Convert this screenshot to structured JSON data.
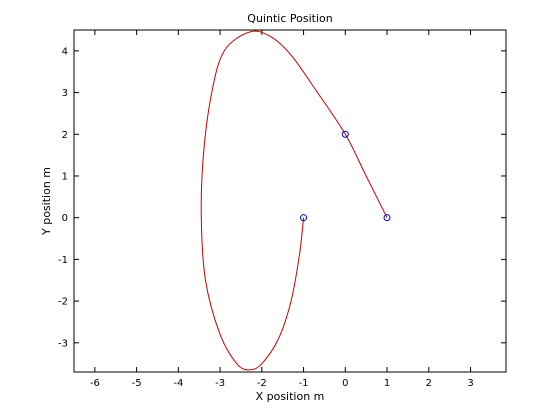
{
  "chart_data": {
    "type": "line",
    "title": "Quintic Position",
    "xlabel": "X position m",
    "ylabel": "Y position m",
    "xlim": [
      -6.5,
      3.85
    ],
    "ylim": [
      -3.7,
      4.5
    ],
    "xticks": [
      -6,
      -5,
      -4,
      -3,
      -2,
      -1,
      0,
      1,
      2,
      3
    ],
    "yticks": [
      -3,
      -2,
      -1,
      0,
      1,
      2,
      3,
      4
    ],
    "grid": false,
    "series": [
      {
        "color": "#cc0000",
        "style": "line",
        "x": [
          1,
          0.5,
          0,
          -0.7,
          -1.3,
          -1.8,
          -2.3,
          -2.9,
          -3.2,
          -3.4,
          -3.45,
          -3.35,
          -3.0,
          -2.6,
          -2.3,
          -2.0,
          -1.6,
          -1.3,
          -1.1,
          -1.0
        ],
        "y": [
          0,
          1.0,
          2.0,
          3.05,
          3.9,
          4.35,
          4.45,
          4.0,
          3.0,
          1.5,
          0,
          -1.5,
          -2.8,
          -3.5,
          -3.65,
          -3.5,
          -2.9,
          -2.0,
          -0.9,
          0
        ]
      },
      {
        "color": "#0000cc",
        "style": "markers",
        "marker": "circle",
        "x": [
          1,
          0,
          -1
        ],
        "y": [
          0,
          2,
          0
        ]
      }
    ]
  }
}
